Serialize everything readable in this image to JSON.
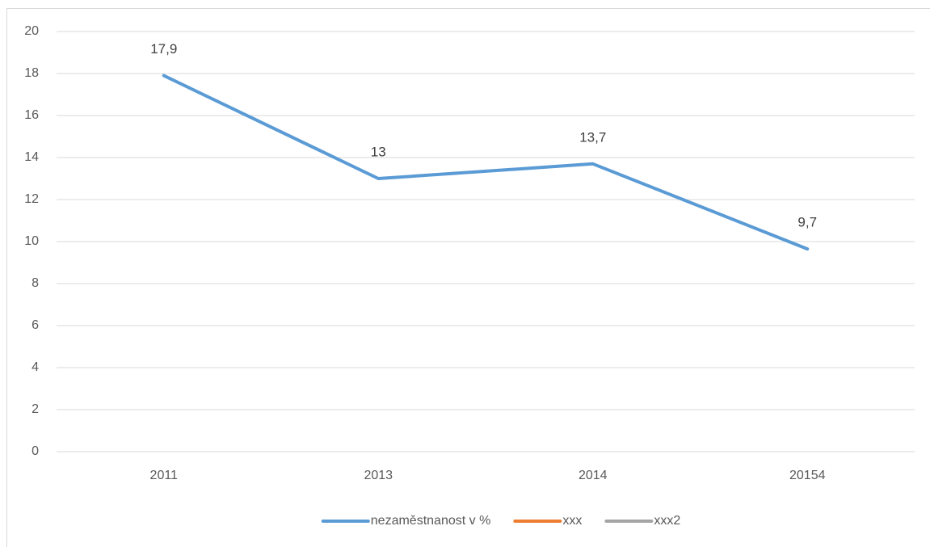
{
  "chart_data": {
    "type": "line",
    "categories": [
      "2011",
      "2013",
      "2014",
      "20154"
    ],
    "series": [
      {
        "name": "nezaměstnanost v %",
        "color": "#5b9bd5",
        "values": [
          17.9,
          13,
          13.7,
          9.65
        ],
        "value_labels": [
          "17,9",
          "13",
          "13,7",
          "9,7"
        ]
      },
      {
        "name": "xxx",
        "color": "#ed7d31",
        "values": [
          null,
          null,
          null,
          null
        ]
      },
      {
        "name": "xxx2",
        "color": "#a5a5a5",
        "values": [
          null,
          null,
          null,
          null
        ]
      }
    ],
    "ylim": [
      0,
      20
    ],
    "yticks": [
      0,
      2,
      4,
      6,
      8,
      10,
      12,
      14,
      16,
      18,
      20
    ],
    "grid": true,
    "legend": "bottom"
  }
}
